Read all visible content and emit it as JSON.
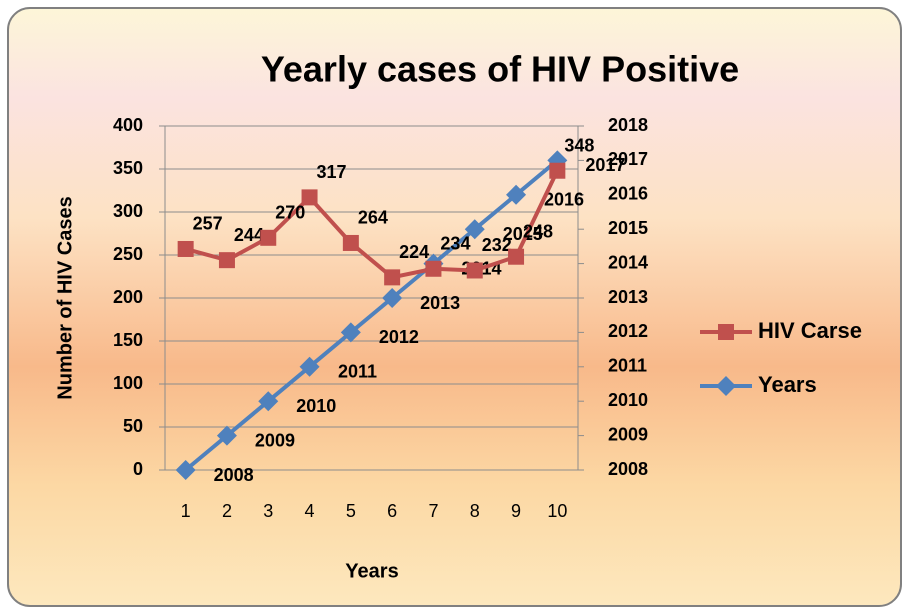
{
  "chart_data": {
    "type": "line",
    "title": "Yearly cases of HIV Positive",
    "xlabel": "Years",
    "ylabel": "Number of HIV Cases",
    "categories": [
      1,
      2,
      3,
      4,
      5,
      6,
      7,
      8,
      9,
      10
    ],
    "series": [
      {
        "name": "HIV Carse",
        "color": "#c0504d",
        "marker": "square",
        "values": [
          257,
          244,
          270,
          317,
          264,
          224,
          234,
          232,
          248,
          348
        ]
      },
      {
        "name": "Years",
        "color": "#4f81bd",
        "marker": "diamond",
        "axis": "y2",
        "values": [
          2008,
          2009,
          2010,
          2011,
          2012,
          2013,
          2014,
          2015,
          2016,
          2017
        ]
      }
    ],
    "ylim": [
      0,
      400
    ],
    "yticks": [
      0,
      50,
      100,
      150,
      200,
      250,
      300,
      350,
      400
    ],
    "y2lim": [
      2008,
      2018
    ],
    "y2ticks": [
      2008,
      2009,
      2010,
      2011,
      2012,
      2013,
      2014,
      2015,
      2016,
      2017,
      2018
    ],
    "grid": true,
    "legend": "right",
    "data_labels": true
  }
}
